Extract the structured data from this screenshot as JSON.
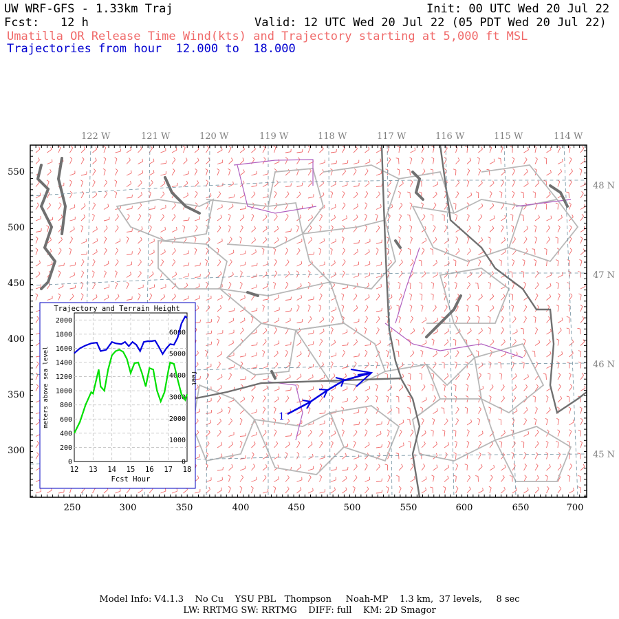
{
  "header": {
    "title": "UW WRF-GFS - 1.33km Traj",
    "init": "Init: 00 UTC Wed 20 Jul 22",
    "fcst_label": "Fcst:",
    "fcst_value": "12 h",
    "valid": "Valid: 12 UTC Wed 20 Jul 22 (05 PDT Wed 20 Jul 22)",
    "subtitle": "Umatilla OR Release Time Wind(kts) and Trajectory starting at 5,000 ft MSL",
    "traj_label": "Trajectories from hour",
    "traj_from": "12.000",
    "traj_to_word": "to",
    "traj_to": "18.000"
  },
  "map": {
    "lon_labels": [
      "122 W",
      "121 W",
      "120 W",
      "119 W",
      "118 W",
      "117 W",
      "116 W",
      "115 W",
      "114 W"
    ],
    "lat_labels": [
      "48 N",
      "47 N",
      "46 N",
      "45 N"
    ],
    "x_ticks": [
      "250",
      "300",
      "350",
      "400",
      "450",
      "500",
      "550",
      "600",
      "650",
      "700"
    ],
    "y_ticks": [
      "550",
      "500",
      "450",
      "400",
      "350",
      "300"
    ],
    "trajectory_label": "1",
    "colors": {
      "wind": "#f06a6a",
      "coast": "#707070",
      "state": "#909090",
      "county": "#b0b0b0",
      "trajectory": "#0000e0",
      "river": "#b060c0"
    }
  },
  "inset": {
    "title": "Trajectory and Terrain Height",
    "left_axis_label": "meters above sea level",
    "right_axis_label": "feet",
    "x_axis_label": "Fcst Hour",
    "left_ticks": [
      "2000",
      "1800",
      "1600",
      "1400",
      "1200",
      "1000",
      "800",
      "600",
      "400",
      "200",
      "0"
    ],
    "right_ticks": [
      "6000",
      "5000",
      "4000",
      "3000",
      "2000",
      "1000",
      "0"
    ],
    "x_ticks": [
      "12",
      "13",
      "14",
      "15",
      "16",
      "17",
      "18"
    ]
  },
  "chart_data": {
    "type": "line",
    "title": "Trajectory and Terrain Height",
    "xlabel": "Fcst Hour",
    "ylabel": "meters above sea level",
    "xlim": [
      12,
      18
    ],
    "ylim": [
      0,
      2100
    ],
    "series": [
      {
        "name": "Trajectory",
        "color": "#0000e0",
        "x": [
          12.0,
          12.3,
          12.6,
          12.9,
          13.2,
          13.4,
          13.7,
          14.0,
          14.2,
          14.5,
          14.7,
          14.9,
          15.1,
          15.3,
          15.5,
          15.7,
          15.9,
          16.1,
          16.3,
          16.5,
          16.7,
          16.9,
          17.1,
          17.3,
          17.5,
          17.7,
          17.9,
          18.0
        ],
        "y": [
          1530,
          1600,
          1640,
          1670,
          1680,
          1560,
          1580,
          1690,
          1670,
          1660,
          1690,
          1630,
          1690,
          1650,
          1560,
          1690,
          1700,
          1700,
          1710,
          1620,
          1520,
          1600,
          1660,
          1650,
          1750,
          1950,
          2050,
          2030
        ]
      },
      {
        "name": "Terrain",
        "color": "#00e000",
        "x": [
          12.0,
          12.3,
          12.6,
          12.9,
          13.0,
          13.3,
          13.4,
          13.6,
          13.8,
          14.0,
          14.2,
          14.4,
          14.6,
          14.8,
          15.0,
          15.2,
          15.4,
          15.6,
          15.8,
          16.0,
          16.2,
          16.4,
          16.6,
          16.8,
          17.0,
          17.1,
          17.3,
          17.5,
          17.7,
          17.9,
          18.0
        ],
        "y": [
          400,
          560,
          800,
          980,
          960,
          1300,
          1060,
          1000,
          1300,
          1500,
          1560,
          1580,
          1550,
          1450,
          1250,
          1390,
          1400,
          1250,
          1060,
          1320,
          1300,
          1000,
          850,
          980,
          1280,
          1400,
          1380,
          1160,
          950,
          870,
          950
        ]
      }
    ]
  }
}
